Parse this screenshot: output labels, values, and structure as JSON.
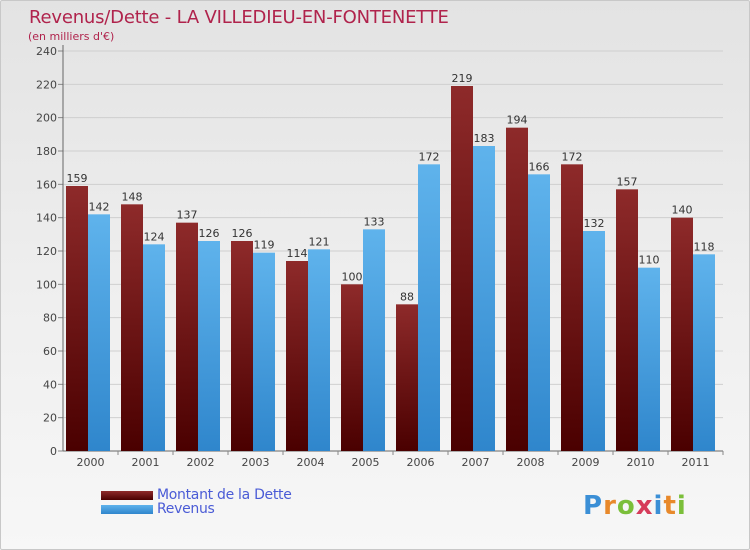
{
  "header": {
    "title": "Revenus/Dette - LA VILLEDIEU-EN-FONTENETTE",
    "subtitle": "(en milliers d'€)"
  },
  "chart_data": {
    "type": "bar",
    "categories": [
      "2000",
      "2001",
      "2002",
      "2003",
      "2004",
      "2005",
      "2006",
      "2007",
      "2008",
      "2009",
      "2010",
      "2011"
    ],
    "series": [
      {
        "name": "Montant de la Dette",
        "color": "#8b1a1a",
        "values": [
          159,
          148,
          137,
          126,
          114,
          100,
          88,
          219,
          194,
          172,
          157,
          140
        ]
      },
      {
        "name": "Revenus",
        "color": "#4aa3e0",
        "values": [
          142,
          124,
          126,
          119,
          121,
          133,
          172,
          183,
          166,
          132,
          110,
          118
        ]
      }
    ],
    "ylim": [
      0,
      240
    ],
    "yticks": [
      0,
      20,
      40,
      60,
      80,
      100,
      120,
      140,
      160,
      180,
      200,
      220,
      240
    ],
    "grid": true,
    "legend_position": "bottom-left"
  },
  "logo": {
    "letters": [
      "P",
      "r",
      "o",
      "x",
      "i",
      "t",
      "i"
    ],
    "colors": [
      "#3b8fd6",
      "#e8892b",
      "#7bbf3a",
      "#d63b5a",
      "#3b8fd6",
      "#e8892b",
      "#7bbf3a"
    ]
  }
}
